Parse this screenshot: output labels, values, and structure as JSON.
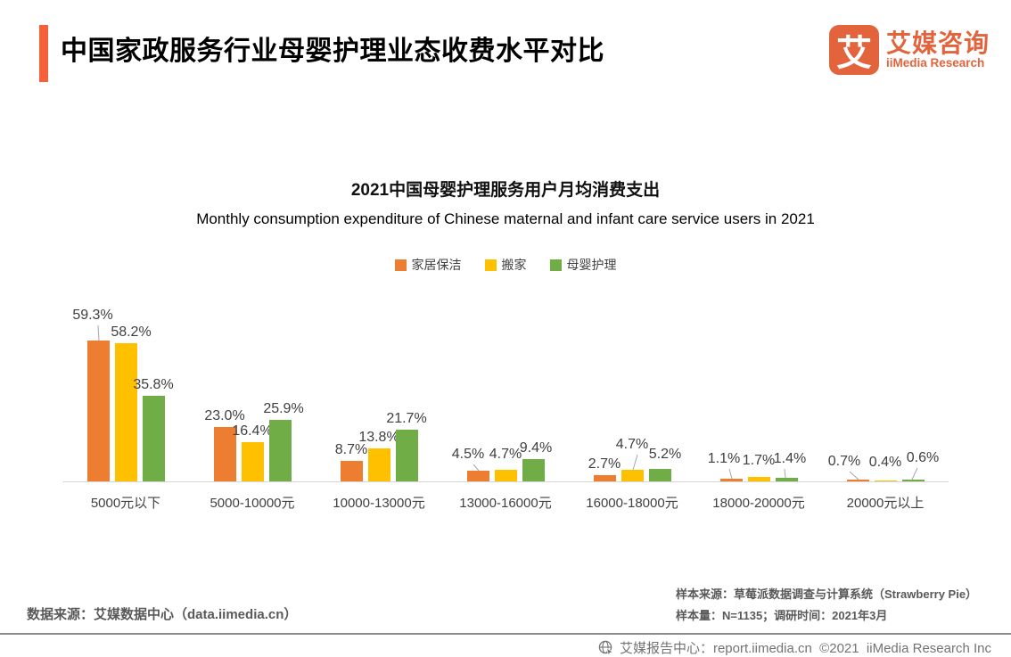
{
  "header": {
    "title": "中国家政服务行业母婴护理业态收费水平对比",
    "logo": {
      "mark": "艾",
      "name_cn": "艾媒咨询",
      "name_en": "iiMedia Research"
    }
  },
  "chart_data": {
    "type": "bar",
    "title": "2021中国母婴护理服务用户月均消费支出",
    "subtitle": "Monthly consumption expenditure of Chinese maternal and infant care service users in 2021",
    "categories": [
      "5000元以下",
      "5000-10000元",
      "10000-13000元",
      "13000-16000元",
      "16000-18000元",
      "18000-20000元",
      "20000元以上"
    ],
    "series": [
      {
        "name": "家居保洁",
        "color": "#ED7D31",
        "values": [
          59.3,
          23.0,
          8.7,
          4.5,
          2.7,
          1.1,
          0.7
        ]
      },
      {
        "name": "搬家",
        "color": "#FFC000",
        "values": [
          58.2,
          16.4,
          13.8,
          4.7,
          4.7,
          1.7,
          0.4
        ]
      },
      {
        "name": "母婴护理",
        "color": "#70AD47",
        "values": [
          35.8,
          25.9,
          21.7,
          9.4,
          5.2,
          1.4,
          0.6
        ]
      }
    ],
    "unit": "%",
    "ylim": [
      0,
      65
    ],
    "grid": false,
    "legend_position": "top",
    "axis_color": "#D6D6D6"
  },
  "notes": {
    "data_source": "数据来源：艾媒数据中心（data.iimedia.cn）",
    "sample_source": "样本来源：草莓派数据调查与计算系统（Strawberry Pie）",
    "sample_size": "样本量：N=1135；调研时间：2021年3月"
  },
  "footer": {
    "text": "艾媒报告中心：report.iimedia.cn  ©2021  iiMedia Research Inc"
  }
}
